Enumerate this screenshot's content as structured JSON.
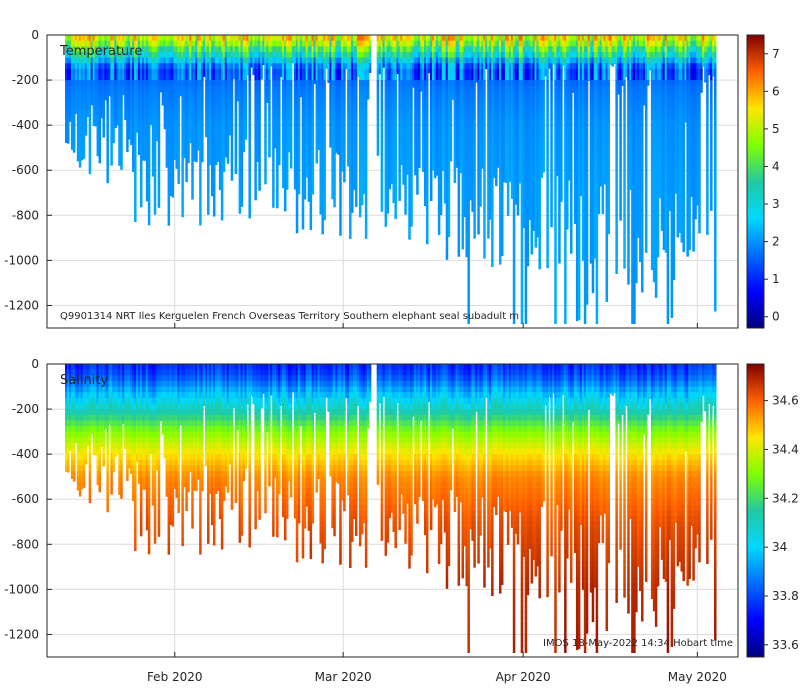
{
  "chart_data": [
    {
      "type": "heatmap",
      "title": "Temperature",
      "variable": "Temperature",
      "annotation": "Q9901314 NRT Iles Kerguelen French Overseas Territory Southern elephant seal subadult m",
      "ylim": [
        -1300,
        0
      ],
      "yticks": [
        0,
        -200,
        -400,
        -600,
        -800,
        -1000,
        -1200
      ],
      "ytick_labels": [
        "0",
        "-200",
        "-400",
        "-600",
        "-800",
        "-1000",
        "-1200"
      ],
      "colorbar": {
        "range": [
          -0.3,
          7.5
        ],
        "ticks": [
          0,
          1,
          2,
          3,
          4,
          5,
          6,
          7
        ],
        "tick_labels": [
          "0",
          "1",
          "2",
          "3",
          "4",
          "5",
          "6",
          "7"
        ]
      },
      "grid": true,
      "approx_profile": {
        "depth_m": [
          0,
          -30,
          -60,
          -100,
          -150,
          -250,
          -400,
          -700,
          -1000,
          -1300
        ],
        "value": [
          5.5,
          5.0,
          4.0,
          3.0,
          1.5,
          1.8,
          2.0,
          2.1,
          2.1,
          2.1
        ]
      }
    },
    {
      "type": "heatmap",
      "title": "Salinity",
      "variable": "Salinity",
      "annotation": "IMOS 18-May-2022 14:34 Hobart time",
      "ylim": [
        -1300,
        0
      ],
      "yticks": [
        0,
        -200,
        -400,
        -600,
        -800,
        -1000,
        -1200
      ],
      "ytick_labels": [
        "0",
        "-200",
        "-400",
        "-600",
        "-800",
        "-1000",
        "-1200"
      ],
      "xticks": [
        "Feb 2020",
        "Mar 2020",
        "Apr 2020",
        "May 2020"
      ],
      "x_tick_dates": [
        "2020-02-01",
        "2020-03-01",
        "2020-04-01",
        "2020-05-01"
      ],
      "x_range_dates": [
        "2020-01-10",
        "2020-05-08"
      ],
      "colorbar": {
        "range": [
          33.55,
          34.75
        ],
        "ticks": [
          33.6,
          33.8,
          34,
          34.2,
          34.4,
          34.6
        ],
        "tick_labels": [
          "33.6",
          "33.8",
          "34",
          "34.2",
          "34.4",
          "34.6"
        ]
      },
      "grid": true,
      "approx_profile": {
        "depth_m": [
          0,
          -50,
          -100,
          -200,
          -300,
          -400,
          -500,
          -700,
          -1000,
          -1300
        ],
        "value": [
          33.75,
          33.8,
          33.9,
          34.1,
          34.3,
          34.45,
          34.55,
          34.62,
          34.68,
          34.7
        ]
      }
    }
  ]
}
